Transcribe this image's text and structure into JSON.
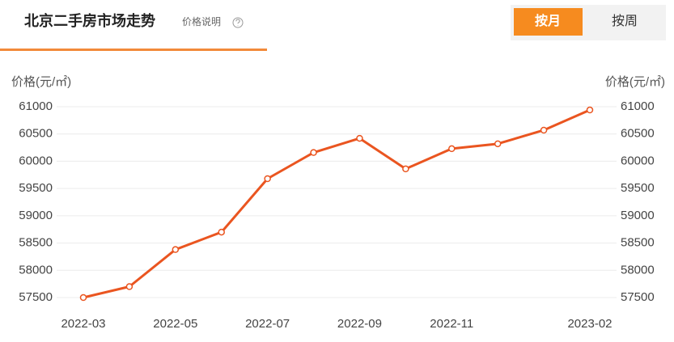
{
  "header": {
    "title": "北京二手房市场走势",
    "help": "价格说明",
    "tabs": [
      "按月",
      "按周"
    ]
  },
  "chart_data": {
    "type": "line",
    "y_label": "价格(元/㎡)",
    "y2_label": "价格(元/㎡)",
    "categories": [
      "2022-03",
      null,
      "2022-05",
      null,
      "2022-07",
      null,
      "2022-09",
      null,
      "2022-11",
      null,
      null,
      "2023-02"
    ],
    "series": [
      {
        "color": "#ea5520",
        "values": [
          57500,
          57700,
          58380,
          58700,
          59680,
          60160,
          60420,
          59860,
          60230,
          60320,
          60570,
          60940
        ]
      }
    ],
    "ylim": [
      57500,
      61000
    ],
    "yticks": [
      57500,
      58000,
      58500,
      59000,
      59500,
      60000,
      60500,
      61000
    ],
    "y2lim": [
      57500,
      61000
    ],
    "y2ticks": [
      57500,
      58000,
      58500,
      59000,
      59500,
      60000,
      60500,
      61000
    ],
    "grid": true
  }
}
